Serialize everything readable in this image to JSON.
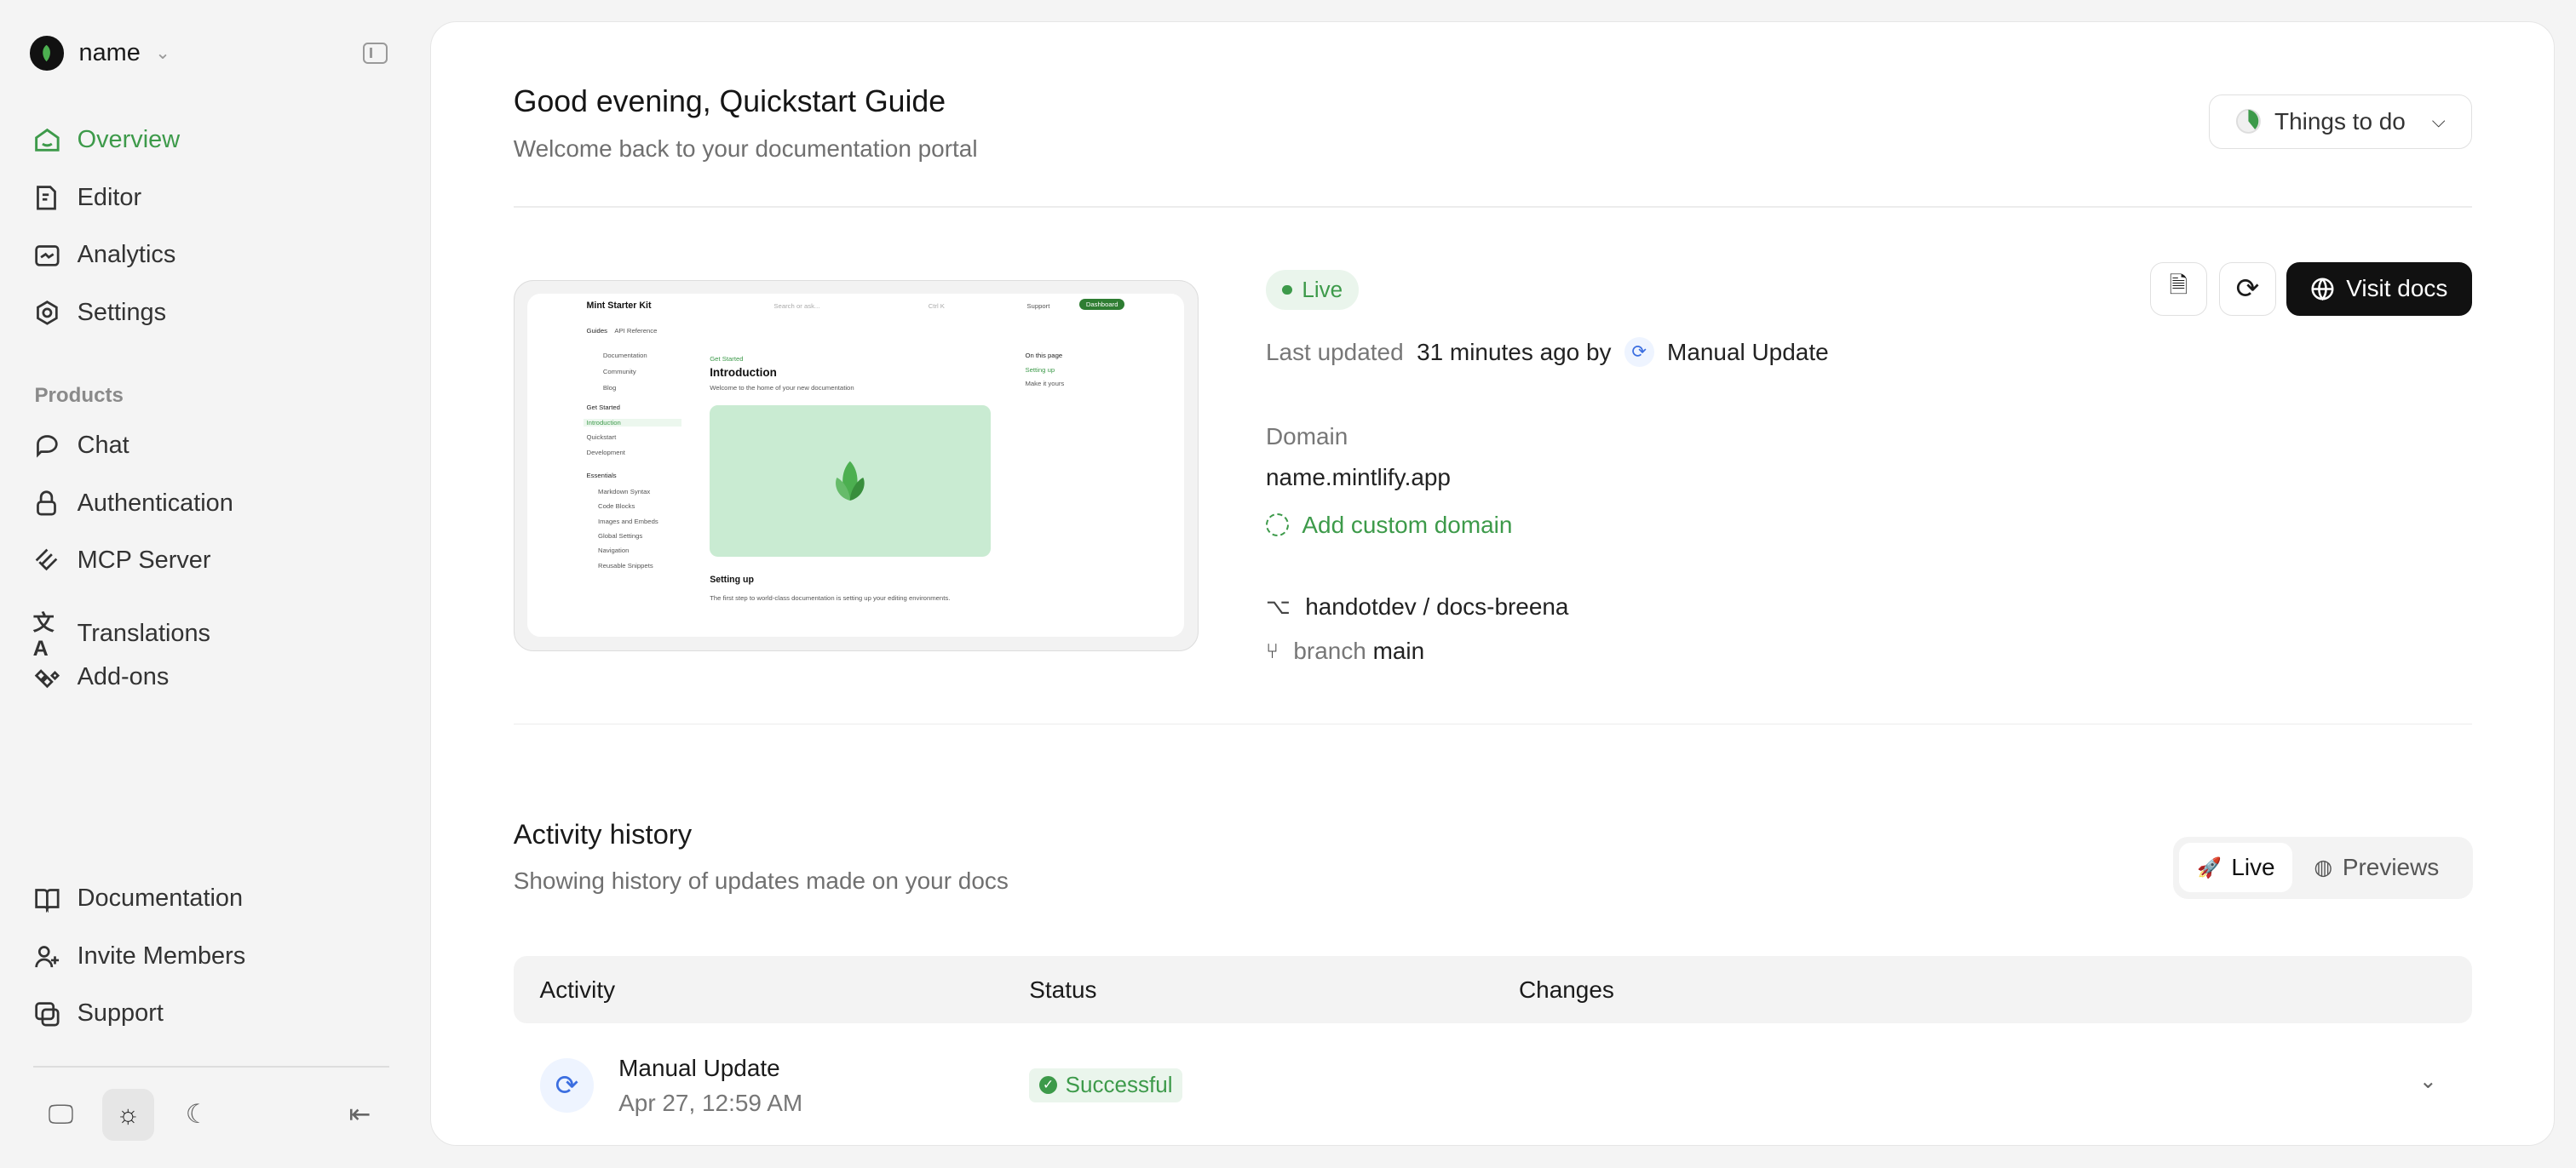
{
  "sidebar": {
    "org_name": "name",
    "nav": [
      {
        "label": "Overview",
        "icon": "home-icon",
        "active": true
      },
      {
        "label": "Editor",
        "icon": "editor-icon"
      },
      {
        "label": "Analytics",
        "icon": "analytics-icon"
      },
      {
        "label": "Settings",
        "icon": "gear-icon"
      }
    ],
    "products_heading": "Products",
    "products": [
      {
        "label": "Chat",
        "icon": "chat-icon"
      },
      {
        "label": "Authentication",
        "icon": "lock-icon"
      },
      {
        "label": "MCP Server",
        "icon": "mcp-icon"
      },
      {
        "label": "Translations",
        "icon": "translate-icon"
      },
      {
        "label": "Add-ons",
        "icon": "addons-icon"
      }
    ],
    "bottom": [
      {
        "label": "Documentation",
        "icon": "book-icon"
      },
      {
        "label": "Invite Members",
        "icon": "user-plus-icon"
      },
      {
        "label": "Support",
        "icon": "support-icon"
      }
    ],
    "theme_selected": "light"
  },
  "header": {
    "greeting": "Good evening, Quickstart Guide",
    "subtitle": "Welcome back to your documentation portal",
    "todo_label": "Things to do"
  },
  "deployment": {
    "status": "Live",
    "last_updated_label": "Last updated",
    "last_updated_value": "31 minutes ago by",
    "updated_by": "Manual Update",
    "visit_label": "Visit docs",
    "domain_label": "Domain",
    "domain": "name.mintlify.app",
    "add_domain": "Add custom domain",
    "repo": "handotdev / docs-breena",
    "branch_label": "branch",
    "branch": "main"
  },
  "preview": {
    "brand": "Mint Starter Kit",
    "search": "Search or ask...",
    "shortcut": "Ctrl K",
    "support": "Support",
    "dashboard": "Dashboard",
    "tabs": [
      "Guides",
      "API Reference"
    ],
    "links": [
      "Documentation",
      "Community",
      "Blog"
    ],
    "group1": "Get Started",
    "group1_items": [
      "Introduction",
      "Quickstart",
      "Development"
    ],
    "group2": "Essentials",
    "group2_items": [
      "Markdown Syntax",
      "Code Blocks",
      "Images and Embeds",
      "Global Settings",
      "Navigation",
      "Reusable Snippets"
    ],
    "eyebrow": "Get Started",
    "title": "Introduction",
    "desc": "Welcome to the home of your new documentation",
    "on_this_page": "On this page",
    "toc": [
      "Setting up",
      "Make it yours"
    ],
    "section": "Setting up",
    "section_desc": "The first step to world-class documentation is setting up your editing environments."
  },
  "activity": {
    "title": "Activity history",
    "subtitle": "Showing history of updates made on your docs",
    "toggle": [
      "Live",
      "Previews"
    ],
    "columns": [
      "Activity",
      "Status",
      "Changes"
    ],
    "rows": [
      {
        "name": "Manual Update",
        "date": "Apr 27, 12:59 AM",
        "status": "Successful"
      }
    ]
  },
  "colors": {
    "accent": "#3d9a4a",
    "primary_button": "#111111",
    "sidebar_bg": "#f4f4f4"
  }
}
